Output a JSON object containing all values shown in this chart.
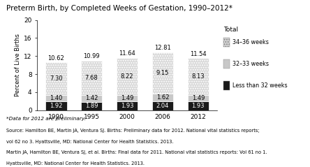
{
  "title": "Preterm Birth, by Completed Weeks of Gestation, 1990–2012*",
  "ylabel": "Percent of Live Births",
  "years": [
    "1990",
    "1995",
    "2000",
    "2006",
    "2012"
  ],
  "less_than_32": [
    1.92,
    1.89,
    1.93,
    2.04,
    1.93
  ],
  "weeks_32_33": [
    1.4,
    1.42,
    1.49,
    1.62,
    1.49
  ],
  "weeks_34_36": [
    7.3,
    7.68,
    8.22,
    9.15,
    8.13
  ],
  "totals": [
    10.62,
    10.99,
    11.64,
    12.81,
    11.54
  ],
  "color_less_32": "#1a1a1a",
  "color_32_33": "#c8c8c8",
  "color_34_36": "#d8d8d8",
  "hatch_34_36": ".....",
  "ylim": [
    0,
    20
  ],
  "yticks": [
    0,
    4,
    8,
    12,
    16,
    20
  ],
  "legend_labels": [
    "34–36 weeks",
    "32–33 weeks",
    "Less than 32 weeks"
  ],
  "footnote": "*Data for 2012 are preliminary.",
  "source_lines": [
    "Source: Hamilton BE, Martin JA, Ventura SJ. Births: Preliminary data for 2012. National vital statistics reports;",
    "vol 62 no 3. Hyattsville, MD: National Center for Health Statistics. 2013.",
    "Martin JA, Hamilton BE, Ventura SJ, et al. Births: Final data for 2011. National vital statistics reports: Vol 61 no 1.",
    "Hyattsville, MD: National Center for Health Statistics. 2013."
  ],
  "total_label": "Total"
}
